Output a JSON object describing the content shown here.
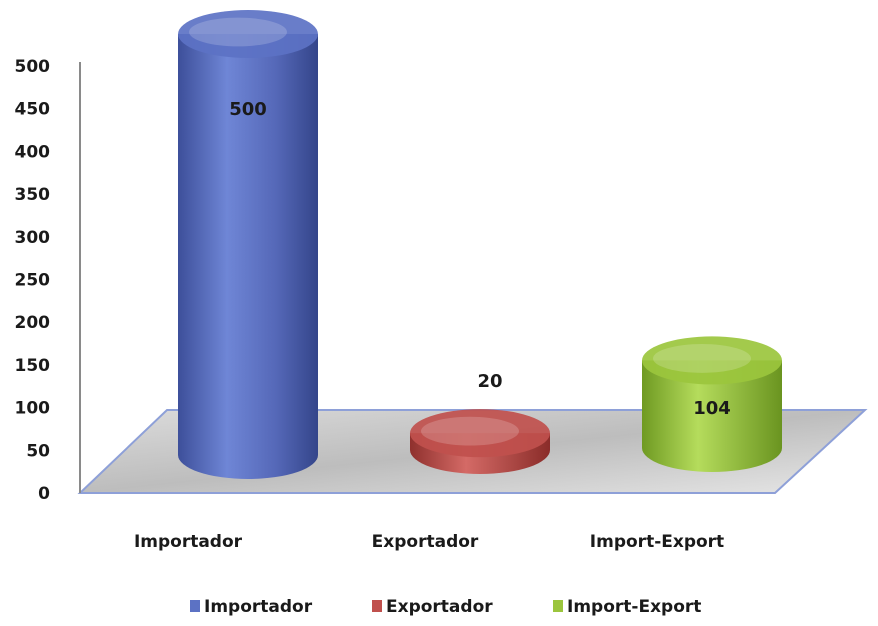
{
  "chart_data": {
    "type": "bar",
    "style": "3d-cylinder",
    "title": "",
    "xlabel": "",
    "ylabel": "",
    "categories": [
      "Importador",
      "Exportador",
      "Import-Export"
    ],
    "values": [
      500,
      20,
      104
    ],
    "colors": [
      "#5c72c4",
      "#c0504d",
      "#9bc53d"
    ],
    "ylim": [
      0,
      500
    ],
    "yticks": [
      0,
      50,
      100,
      150,
      200,
      250,
      300,
      350,
      400,
      450,
      500
    ],
    "data_labels": [
      "500",
      "20",
      "104"
    ],
    "legend": {
      "position": "bottom",
      "entries": [
        "Importador",
        "Exportador",
        "Import-Export"
      ]
    },
    "grid": false
  }
}
